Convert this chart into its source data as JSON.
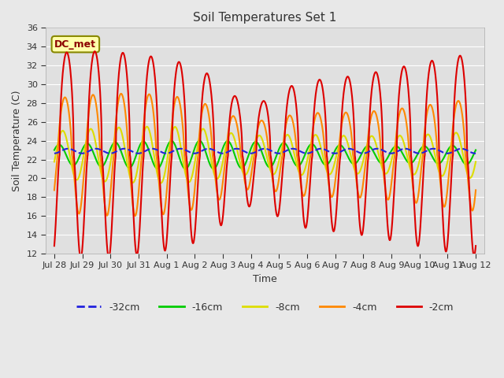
{
  "title": "Soil Temperatures Set 1",
  "xlabel": "Time",
  "ylabel": "Soil Temperature (C)",
  "ylim": [
    12,
    36
  ],
  "yticks": [
    12,
    14,
    16,
    18,
    20,
    22,
    24,
    26,
    28,
    30,
    32,
    34,
    36
  ],
  "fig_bg_color": "#e8e8e8",
  "plot_bg_color": "#e0e0e0",
  "grid_color": "#ffffff",
  "annotation_text": "DC_met",
  "annotation_bg": "#ffffaa",
  "annotation_border": "#888800",
  "legend_entries": [
    "-32cm",
    "-16cm",
    "-8cm",
    "-4cm",
    "-2cm"
  ],
  "line_colors": {
    "-32cm": "#2222dd",
    "-16cm": "#00cc00",
    "-8cm": "#dddd00",
    "-4cm": "#ff8800",
    "-2cm": "#dd0000"
  },
  "line_widths": {
    "-32cm": 1.5,
    "-16cm": 1.5,
    "-8cm": 1.5,
    "-4cm": 1.5,
    "-2cm": 1.5
  },
  "xtick_labels": [
    "Jul 28",
    "Jul 29",
    "Jul 30",
    "Jul 31",
    "Aug 1",
    "Aug 2",
    "Aug 3",
    "Aug 4",
    "Aug 5",
    "Aug 6",
    "Aug 7",
    "Aug 8",
    "Aug 9",
    "Aug 10",
    "Aug 11",
    "Aug 12"
  ],
  "xtick_positions": [
    0,
    1,
    2,
    3,
    4,
    5,
    6,
    7,
    8,
    9,
    10,
    11,
    12,
    13,
    14,
    15
  ]
}
